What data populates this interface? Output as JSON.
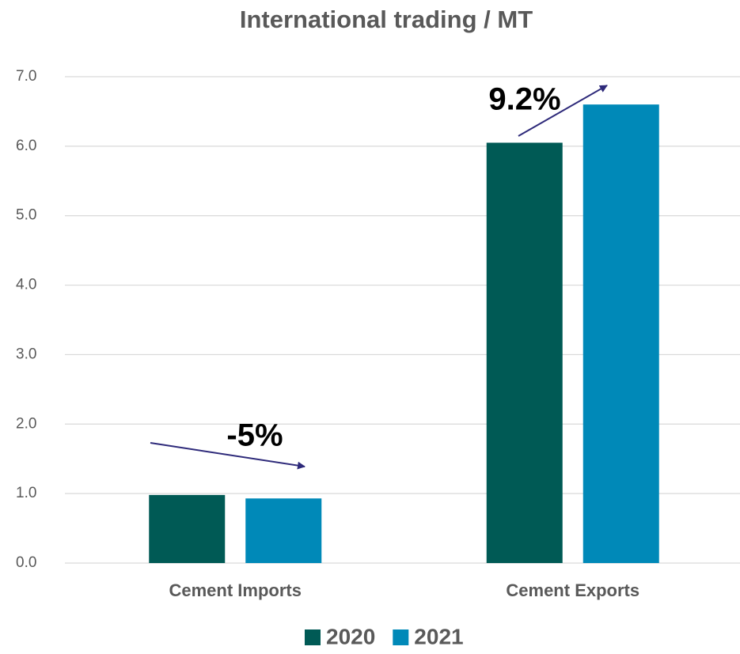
{
  "chart_data": {
    "type": "bar",
    "title": "International trading / MT",
    "categories": [
      "Cement Imports",
      "Cement Exports"
    ],
    "series": [
      {
        "name": "2020",
        "color": "#005a55",
        "values": [
          0.98,
          6.05
        ]
      },
      {
        "name": "2021",
        "color": "#0089b8",
        "values": [
          0.93,
          6.6
        ]
      }
    ],
    "ylim": [
      0,
      7
    ],
    "yticks": [
      {
        "value": 0,
        "label": "0.0"
      },
      {
        "value": 1,
        "label": "1.0"
      },
      {
        "value": 2,
        "label": "2.0"
      },
      {
        "value": 3,
        "label": "3.0"
      },
      {
        "value": 4,
        "label": "4.0"
      },
      {
        "value": 5,
        "label": "5.0"
      },
      {
        "value": 6,
        "label": "6.0"
      },
      {
        "value": 7,
        "label": "7.0"
      }
    ],
    "grid": true,
    "legend": "bottom",
    "annotations": [
      "-5%",
      "9.2%"
    ]
  }
}
